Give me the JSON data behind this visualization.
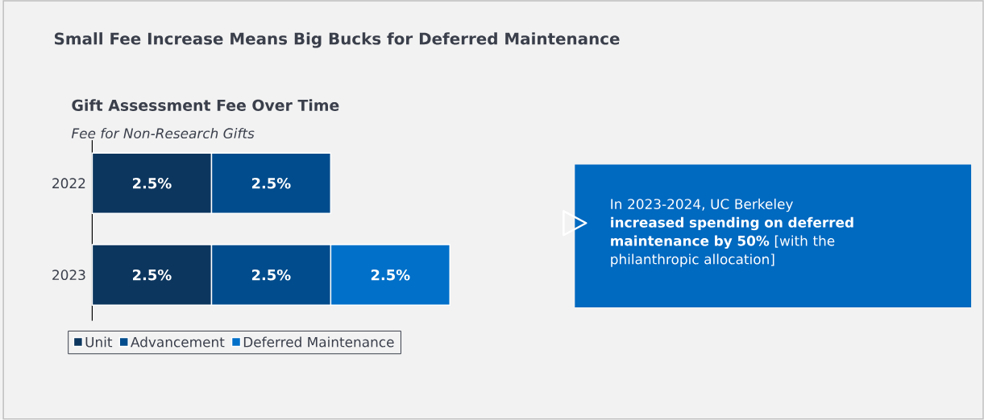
{
  "chart_data": {
    "type": "bar",
    "orientation": "horizontal",
    "stacked": true,
    "title": "Gift Assessment Fee Over Time",
    "subtitle": "Fee for Non-Research Gifts",
    "categories": [
      "2022",
      "2023"
    ],
    "series": [
      {
        "name": "Unit",
        "color": "#0c365e",
        "values": [
          2.5,
          2.5
        ],
        "value_labels": [
          "2.5%",
          "2.5%"
        ]
      },
      {
        "name": "Advancement",
        "color": "#004c8c",
        "values": [
          2.5,
          2.5
        ],
        "value_labels": [
          "2.5%",
          "2.5%"
        ]
      },
      {
        "name": "Deferred Maintenance",
        "color": "#0070c9",
        "values": [
          null,
          2.5
        ],
        "value_labels": [
          null,
          "2.5%"
        ]
      }
    ],
    "legend": "bottom",
    "annotations": [
      "Small Fee Increase Means Big Bucks for Deferred Maintenance",
      "In 2023-2024, UC Berkeley **increased spending on deferred maintenance by 50%** [with the philanthropic allocation]"
    ]
  }
}
